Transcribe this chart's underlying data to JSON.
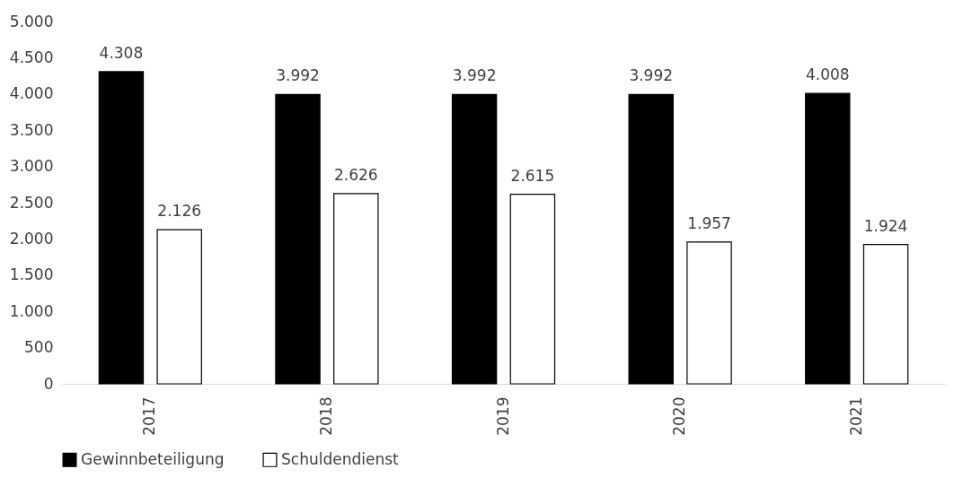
{
  "chart_data": {
    "type": "bar",
    "categories": [
      "2017",
      "2018",
      "2019",
      "2020",
      "2021"
    ],
    "series": [
      {
        "name": "Gewinnbeteiligung",
        "color": "#000000",
        "values": [
          4308,
          3992,
          3992,
          3992,
          4008
        ],
        "value_labels": [
          "4.308",
          "3.992",
          "3.992",
          "3.992",
          "4.008"
        ]
      },
      {
        "name": "Schuldendienst",
        "color": "#ffffff",
        "values": [
          2126,
          2626,
          2615,
          1957,
          1924
        ],
        "value_labels": [
          "2.126",
          "2.626",
          "2.615",
          "1.957",
          "1.924"
        ]
      }
    ],
    "ylim": [
      0,
      5000
    ],
    "yticks": [
      0,
      500,
      {
        "value": 1000,
        "label": "1.000"
      },
      {
        "value": 1500,
        "label": "1.500"
      },
      {
        "value": 2000,
        "label": "2.000"
      },
      {
        "value": 2500,
        "label": "2.500"
      },
      {
        "value": 3000,
        "label": "3.000"
      },
      {
        "value": 3500,
        "label": "3.500"
      },
      {
        "value": 4000,
        "label": "4.000"
      },
      {
        "value": 4500,
        "label": "4.500"
      },
      {
        "value": 5000,
        "label": "5.000"
      }
    ],
    "grid": false,
    "legend": "bottom"
  }
}
